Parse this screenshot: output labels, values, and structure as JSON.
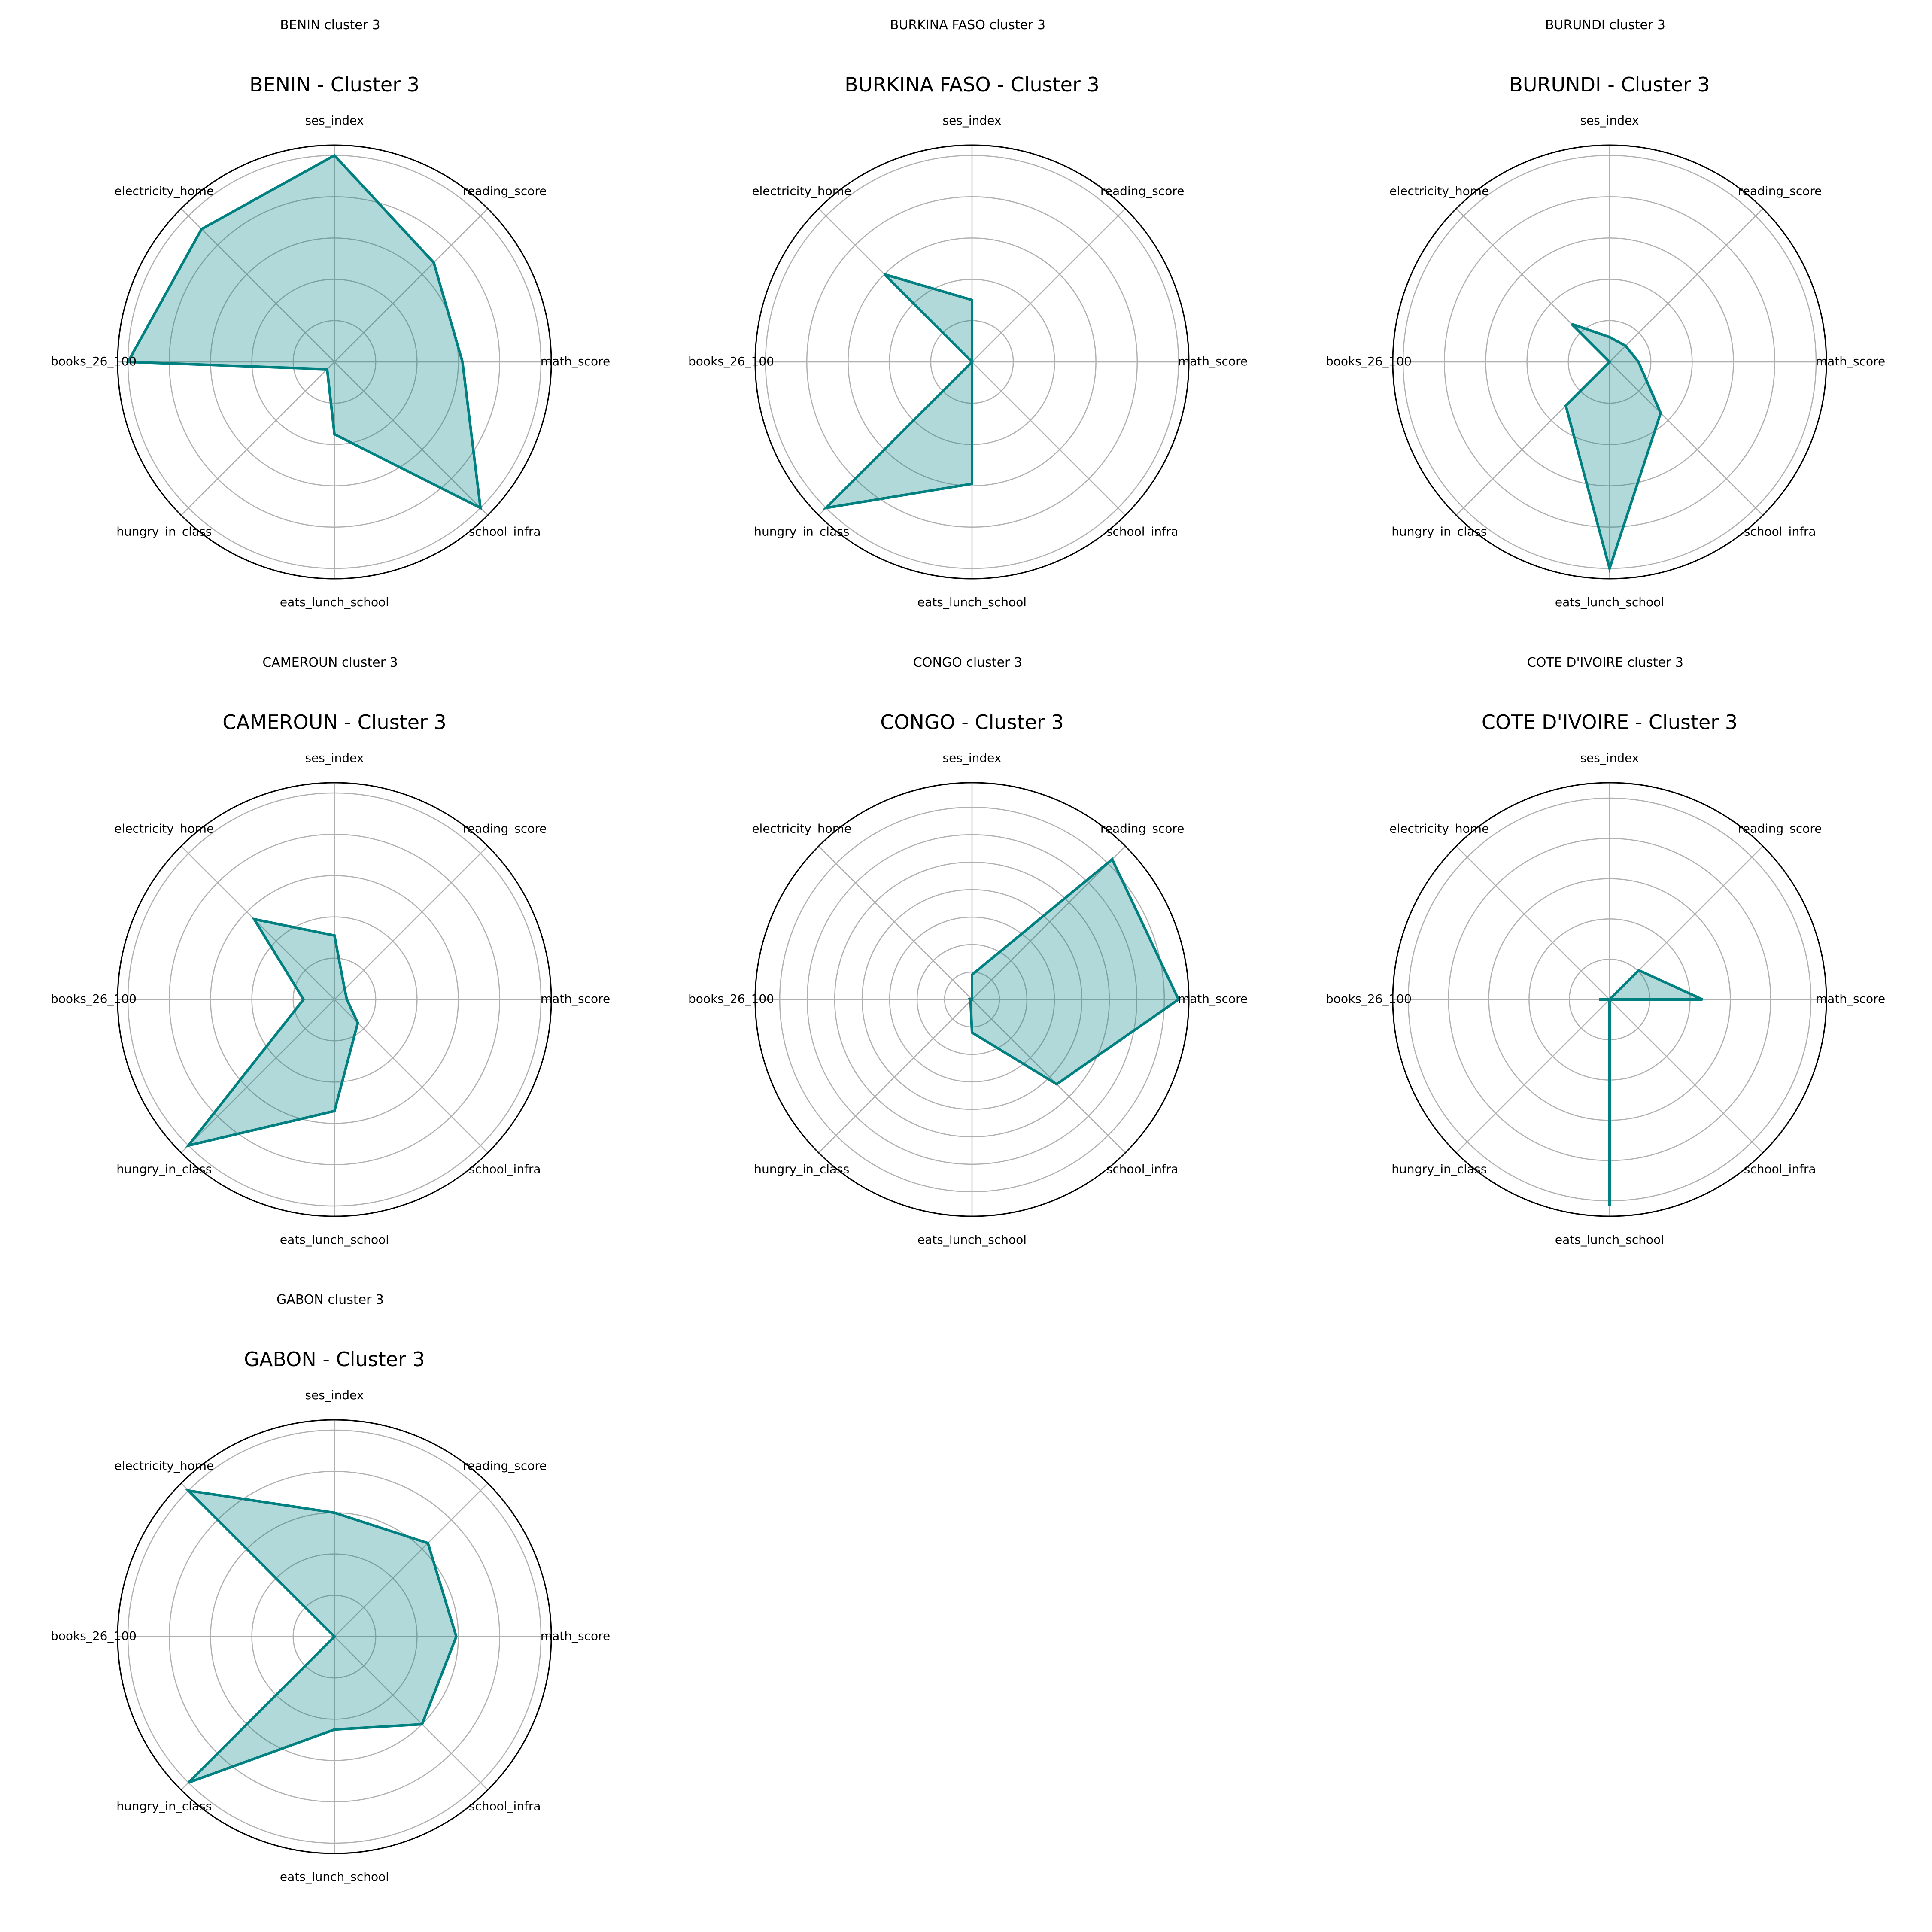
{
  "chart_data": [
    {
      "type": "radar",
      "suptitle": "BENIN cluster 3",
      "title": "BENIN - Cluster 3",
      "categories": [
        "ses_index",
        "reading_score",
        "math_score",
        "school_infra",
        "eats_lunch_school",
        "hungry_in_class",
        "books_26_100",
        "electricity_home"
      ],
      "values": [
        1.0,
        0.68,
        0.62,
        1.0,
        0.35,
        0.05,
        1.0,
        0.91
      ],
      "rticks": [
        0.2,
        0.4,
        0.6,
        0.8,
        1.0
      ],
      "rmax": 1.05,
      "color": "#008080"
    },
    {
      "type": "radar",
      "suptitle": "BURKINA FASO cluster 3",
      "title": "BURKINA FASO - Cluster 3",
      "categories": [
        "ses_index",
        "reading_score",
        "math_score",
        "school_infra",
        "eats_lunch_school",
        "hungry_in_class",
        "books_26_100",
        "electricity_home"
      ],
      "values": [
        0.3,
        0.0,
        0.0,
        0.0,
        0.59,
        1.0,
        0.0,
        0.6
      ],
      "rticks": [
        0.2,
        0.4,
        0.6,
        0.8,
        1.0
      ],
      "rmax": 1.05,
      "color": "#008080"
    },
    {
      "type": "radar",
      "suptitle": "BURUNDI cluster 3",
      "title": "BURUNDI - Cluster 3",
      "categories": [
        "ses_index",
        "reading_score",
        "math_score",
        "school_infra",
        "eats_lunch_school",
        "hungry_in_class",
        "books_26_100",
        "electricity_home"
      ],
      "values": [
        0.12,
        0.11,
        0.14,
        0.35,
        1.0,
        0.3,
        0.0,
        0.26
      ],
      "rticks": [
        0.2,
        0.4,
        0.6,
        0.8,
        1.0
      ],
      "rmax": 1.05,
      "color": "#008080"
    },
    {
      "type": "radar",
      "suptitle": "CAMEROUN cluster 3",
      "title": "CAMEROUN - Cluster 3",
      "categories": [
        "ses_index",
        "reading_score",
        "math_score",
        "school_infra",
        "eats_lunch_school",
        "hungry_in_class",
        "books_26_100",
        "electricity_home"
      ],
      "values": [
        0.31,
        0.07,
        0.06,
        0.16,
        0.54,
        1.0,
        0.15,
        0.55
      ],
      "rticks": [
        0.2,
        0.4,
        0.6,
        0.8,
        1.0
      ],
      "rmax": 1.05,
      "color": "#008080"
    },
    {
      "type": "radar",
      "suptitle": "CONGO cluster 3",
      "title": "CONGO - Cluster 3",
      "categories": [
        "ses_index",
        "reading_score",
        "math_score",
        "school_infra",
        "eats_lunch_school",
        "hungry_in_class",
        "books_26_100",
        "electricity_home"
      ],
      "values": [
        0.12,
        0.96,
        1.0,
        0.58,
        0.16,
        0.01,
        0.01,
        0.0
      ],
      "rticks": [
        0.133,
        0.266,
        0.399,
        0.532,
        0.665,
        0.798,
        0.931
      ],
      "rmax": 1.05,
      "color": "#008080"
    },
    {
      "type": "radar",
      "suptitle": "COTE D'IVOIRE cluster 3",
      "title": "COTE D'IVOIRE - Cluster 3",
      "categories": [
        "ses_index",
        "reading_score",
        "math_score",
        "school_infra",
        "eats_lunch_school",
        "hungry_in_class",
        "books_26_100",
        "electricity_home"
      ],
      "values": [
        0.0,
        0.2,
        0.45,
        0.0,
        1.0,
        0.0,
        0.05,
        0.0
      ],
      "rticks": [
        0.195,
        0.39,
        0.585,
        0.78,
        0.975
      ],
      "rmax": 1.05,
      "color": "#008080"
    },
    {
      "type": "radar",
      "suptitle": "GABON cluster 3",
      "title": "GABON - Cluster 3",
      "categories": [
        "ses_index",
        "reading_score",
        "math_score",
        "school_infra",
        "eats_lunch_school",
        "hungry_in_class",
        "books_26_100",
        "electricity_home"
      ],
      "values": [
        0.6,
        0.64,
        0.59,
        0.6,
        0.45,
        1.0,
        0.0,
        1.0
      ],
      "rticks": [
        0.2,
        0.4,
        0.6,
        0.8,
        1.0
      ],
      "rmax": 1.05,
      "color": "#008080"
    }
  ]
}
